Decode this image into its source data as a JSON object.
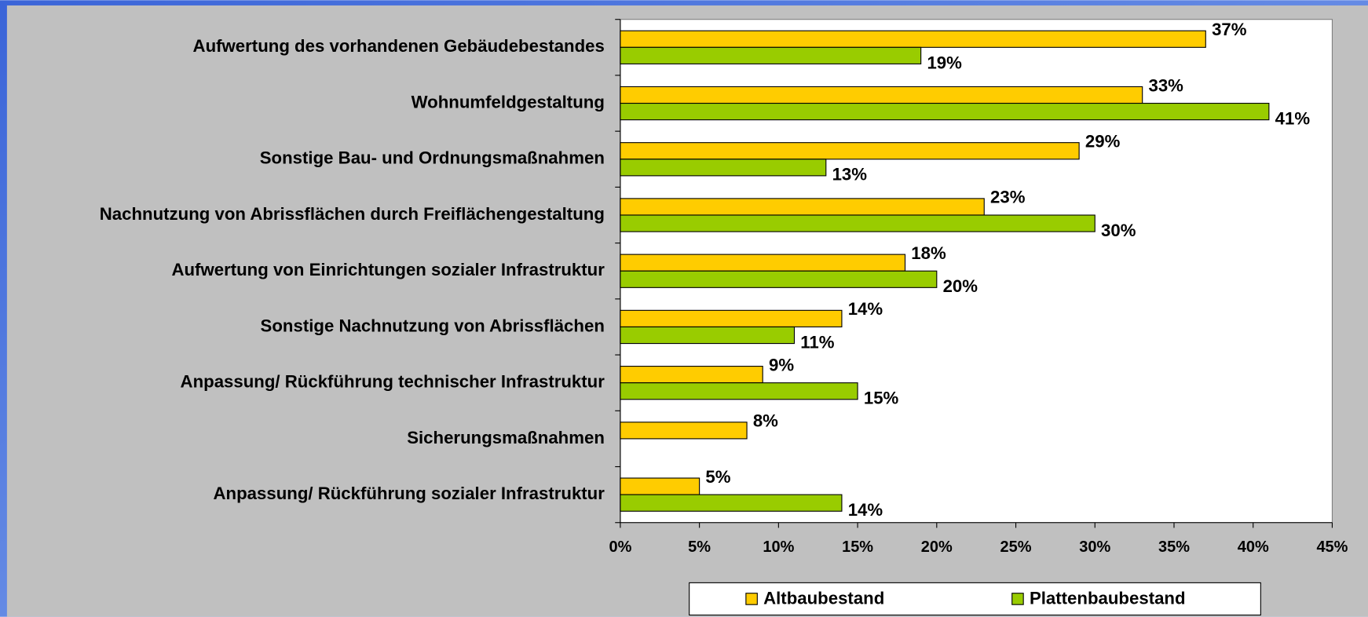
{
  "chart_data": {
    "type": "hbar",
    "categories": [
      "Aufwertung des vorhandenen Gebäudebestandes",
      "Wohnumfeldgestaltung",
      "Sonstige Bau- und Ordnungsmaßnahmen",
      "Nachnutzung von Abrissflächen durch Freiflächengestaltung",
      "Aufwertung von Einrichtungen sozialer Infrastruktur",
      "Sonstige Nachnutzung von Abrissflächen",
      "Anpassung/ Rückführung technischer Infrastruktur",
      "Sicherungsmaßnahmen",
      "Anpassung/ Rückführung sozialer Infrastruktur"
    ],
    "series": [
      {
        "name": "Altbaubestand",
        "color": "#ffcc00",
        "values": [
          37,
          33,
          29,
          23,
          18,
          14,
          9,
          8,
          5
        ],
        "value_labels": [
          "37%",
          "33%",
          "29%",
          "23%",
          "18%",
          "14%",
          "9%",
          "8%",
          "5%"
        ]
      },
      {
        "name": "Plattenbaubestand",
        "color": "#99cc00",
        "values": [
          19,
          41,
          13,
          30,
          20,
          11,
          15,
          null,
          14
        ],
        "value_labels": [
          "19%",
          "41%",
          "13%",
          "30%",
          "20%",
          "11%",
          "15%",
          null,
          "14%"
        ]
      }
    ],
    "xlim": [
      0,
      45
    ],
    "xticks": [
      {
        "value": 0,
        "label": "0%"
      },
      {
        "value": 5,
        "label": "5%"
      },
      {
        "value": 10,
        "label": "10%"
      },
      {
        "value": 15,
        "label": "15%"
      },
      {
        "value": 20,
        "label": "20%"
      },
      {
        "value": 25,
        "label": "25%"
      },
      {
        "value": 30,
        "label": "30%"
      },
      {
        "value": 35,
        "label": "35%"
      },
      {
        "value": 40,
        "label": "40%"
      },
      {
        "value": 45,
        "label": "45%"
      }
    ],
    "legend": "bottom"
  }
}
